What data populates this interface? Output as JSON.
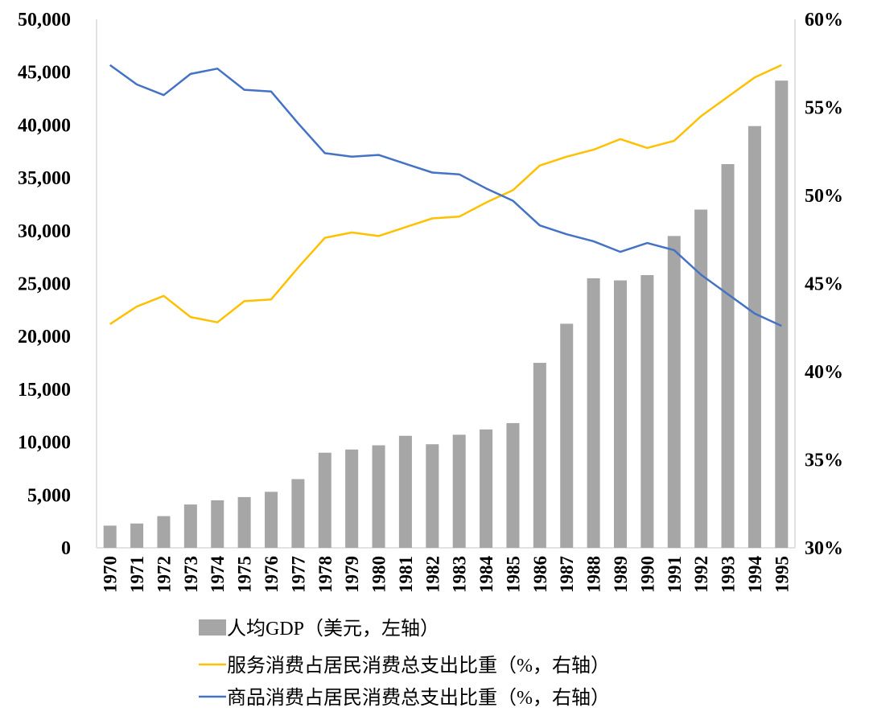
{
  "chart_data": {
    "type": "bar",
    "categories": [
      "1970",
      "1971",
      "1972",
      "1973",
      "1974",
      "1975",
      "1976",
      "1977",
      "1978",
      "1979",
      "1980",
      "1981",
      "1982",
      "1983",
      "1984",
      "1985",
      "1986",
      "1987",
      "1988",
      "1989",
      "1990",
      "1991",
      "1992",
      "1993",
      "1994",
      "1995"
    ],
    "y_left": {
      "range": [
        0,
        50000
      ],
      "ticks": [
        0,
        5000,
        10000,
        15000,
        20000,
        25000,
        30000,
        35000,
        40000,
        45000,
        50000
      ],
      "tick_labels": [
        "0",
        "5,000",
        "10,000",
        "15,000",
        "20,000",
        "25,000",
        "30,000",
        "35,000",
        "40,000",
        "45,000",
        "50,000"
      ]
    },
    "y_right": {
      "range": [
        30,
        60
      ],
      "ticks": [
        30,
        35,
        40,
        45,
        50,
        55,
        60
      ],
      "tick_labels": [
        "30%",
        "35%",
        "40%",
        "45%",
        "50%",
        "55%",
        "60%"
      ]
    },
    "series": [
      {
        "name": "人均GDP（美元，左轴）",
        "type": "bar",
        "axis": "left",
        "color": "#a6a6a6",
        "values": [
          2100,
          2300,
          3000,
          4100,
          4500,
          4800,
          5300,
          6500,
          9000,
          9300,
          9700,
          10600,
          9800,
          10700,
          11200,
          11800,
          17500,
          21200,
          25500,
          25300,
          25800,
          29500,
          32000,
          36300,
          39900,
          44200
        ]
      },
      {
        "name": "服务消费占居民消费总支出比重（%，右轴）",
        "type": "line",
        "axis": "right",
        "color": "#ffc000",
        "values": [
          42.7,
          43.7,
          44.3,
          43.1,
          42.8,
          44.0,
          44.1,
          45.9,
          47.6,
          47.9,
          47.7,
          48.2,
          48.7,
          48.8,
          49.6,
          50.3,
          51.7,
          52.2,
          52.6,
          53.2,
          52.7,
          53.1,
          54.5,
          55.6,
          56.7,
          57.4
        ]
      },
      {
        "name": "商品消费占居民消费总支出比重（%，右轴）",
        "type": "line",
        "axis": "right",
        "color": "#4472c4",
        "values": [
          57.4,
          56.3,
          55.7,
          56.9,
          57.2,
          56.0,
          55.9,
          54.1,
          52.4,
          52.2,
          52.3,
          51.8,
          51.3,
          51.2,
          50.4,
          49.7,
          48.3,
          47.8,
          47.4,
          46.8,
          47.3,
          46.9,
          45.5,
          44.4,
          43.3,
          42.6
        ]
      }
    ],
    "legend_position": "bottom",
    "grid": false
  }
}
